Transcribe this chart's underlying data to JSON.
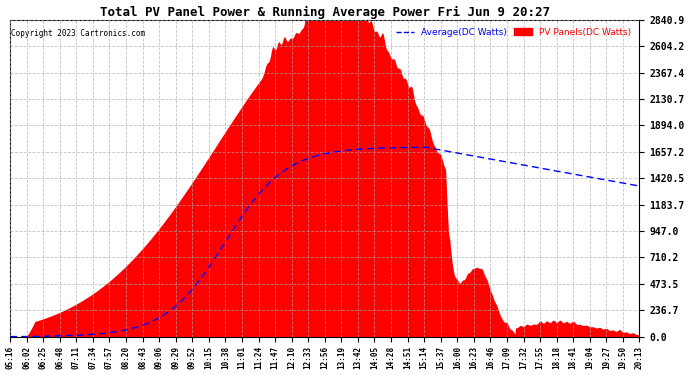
{
  "title": "Total PV Panel Power & Running Average Power Fri Jun 9 20:27",
  "copyright": "Copyright 2023 Cartronics.com",
  "yticks": [
    0.0,
    236.7,
    473.5,
    710.2,
    947.0,
    1183.7,
    1420.5,
    1657.2,
    1894.0,
    2130.7,
    2367.4,
    2604.2,
    2840.9
  ],
  "ymax": 2840.9,
  "xtick_labels": [
    "05:16",
    "06:02",
    "06:25",
    "06:48",
    "07:11",
    "07:34",
    "07:57",
    "08:20",
    "08:43",
    "09:06",
    "09:29",
    "09:52",
    "10:15",
    "10:38",
    "11:01",
    "11:24",
    "11:47",
    "12:10",
    "12:33",
    "12:56",
    "13:19",
    "13:42",
    "14:05",
    "14:28",
    "14:51",
    "15:14",
    "15:37",
    "16:00",
    "16:23",
    "16:46",
    "17:09",
    "17:32",
    "17:55",
    "18:18",
    "18:41",
    "19:04",
    "19:27",
    "19:50",
    "20:13"
  ],
  "pv_color": "#FF0000",
  "avg_color": "#0000FF",
  "background_color": "#FFFFFF",
  "grid_color": "#AAAAAA",
  "title_color": "#000000",
  "copyright_color": "#000000",
  "legend_avg_label": "Average(DC Watts)",
  "legend_pv_label": "PV Panels(DC Watts)",
  "n_xticks": 39
}
